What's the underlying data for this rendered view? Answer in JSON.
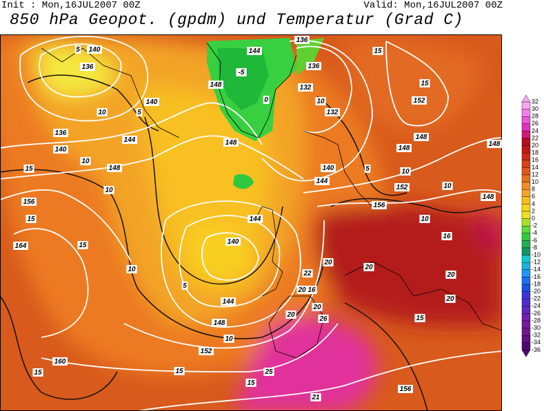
{
  "header": {
    "init": "Init : Mon,16JUL2007 00Z",
    "valid": "Valid: Mon,16JUL2007 00Z",
    "title": "850 hPa Geopot. (gpdm) und Temperatur (Grad C)"
  },
  "colorbar": {
    "labels": [
      32,
      30,
      28,
      26,
      24,
      22,
      20,
      18,
      16,
      14,
      12,
      10,
      8,
      6,
      4,
      2,
      0,
      -2,
      -4,
      -6,
      -8,
      -10,
      -12,
      -14,
      -16,
      -18,
      -20,
      -22,
      -24,
      -26,
      -28,
      -30,
      -32,
      -34,
      -36
    ],
    "colors": [
      "#f7a8f0",
      "#f080e8",
      "#e858d8",
      "#e030c0",
      "#d01878",
      "#b01020",
      "#c01818",
      "#d02818",
      "#d84018",
      "#e05818",
      "#e87020",
      "#f08c28",
      "#f4a428",
      "#f8bc20",
      "#f8d420",
      "#f0e020",
      "#a8e028",
      "#60d838",
      "#30c840",
      "#20b050",
      "#109860",
      "#10c8c8",
      "#20b0e0",
      "#2098f0",
      "#2070f0",
      "#2050e0",
      "#3838d8",
      "#5030c8",
      "#6028c0",
      "#7020b0",
      "#7818a0",
      "#701890",
      "#601080",
      "#500870"
    ]
  },
  "contour_labels": [
    "140",
    "136",
    "5",
    "10",
    "5",
    "140",
    "136",
    "140",
    "144",
    "10",
    "148",
    "10",
    "156",
    "15",
    "164",
    "15",
    "10",
    "5",
    "140",
    "144",
    "148",
    "152",
    "160",
    "15",
    "15",
    "10",
    "144",
    "148",
    "-5",
    "148",
    "144",
    "136",
    "136",
    "132",
    "10",
    "132",
    "0",
    "140",
    "144",
    "5",
    "148",
    "152",
    "156",
    "15",
    "15",
    "152",
    "148",
    "148",
    "10",
    "10",
    "148",
    "10",
    "16",
    "20",
    "20",
    "22",
    "20",
    "16",
    "20",
    "20",
    "26",
    "15",
    "20",
    "15",
    "25",
    "21",
    "156",
    "20",
    "15"
  ]
}
